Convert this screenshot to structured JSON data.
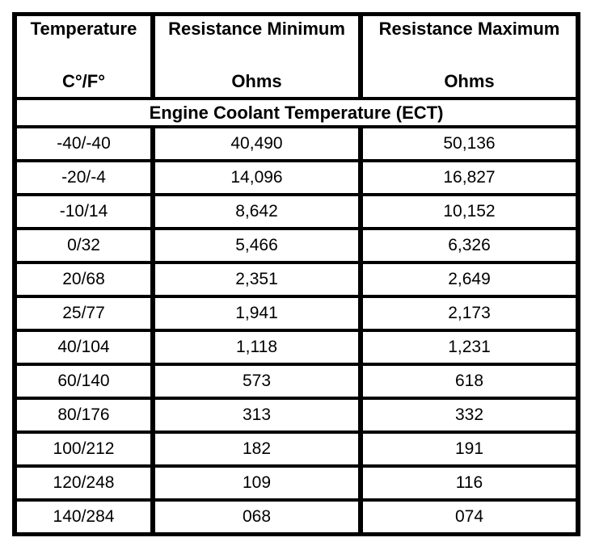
{
  "table": {
    "header": {
      "temperature": {
        "title": "Temperature",
        "unit": "C°/F°"
      },
      "resistance_min": {
        "title": "Resistance Minimum",
        "unit": "Ohms"
      },
      "resistance_max": {
        "title": "Resistance Maximum",
        "unit": "Ohms"
      }
    },
    "section_title": "Engine Coolant Temperature (ECT)",
    "rows": [
      {
        "temp": "-40/-40",
        "min": "40,490",
        "max": "50,136"
      },
      {
        "temp": "-20/-4",
        "min": "14,096",
        "max": "16,827"
      },
      {
        "temp": "-10/14",
        "min": "8,642",
        "max": "10,152"
      },
      {
        "temp": "0/32",
        "min": "5,466",
        "max": "6,326"
      },
      {
        "temp": "20/68",
        "min": "2,351",
        "max": "2,649"
      },
      {
        "temp": "25/77",
        "min": "1,941",
        "max": "2,173"
      },
      {
        "temp": "40/104",
        "min": "1,118",
        "max": "1,231"
      },
      {
        "temp": "60/140",
        "min": "573",
        "max": "618"
      },
      {
        "temp": "80/176",
        "min": "313",
        "max": "332"
      },
      {
        "temp": "100/212",
        "min": "182",
        "max": "191"
      },
      {
        "temp": "120/248",
        "min": "109",
        "max": "116"
      },
      {
        "temp": "140/284",
        "min": "068",
        "max": "074"
      }
    ],
    "colors": {
      "border": "#000000",
      "background": "#ffffff",
      "text": "#000000"
    }
  }
}
